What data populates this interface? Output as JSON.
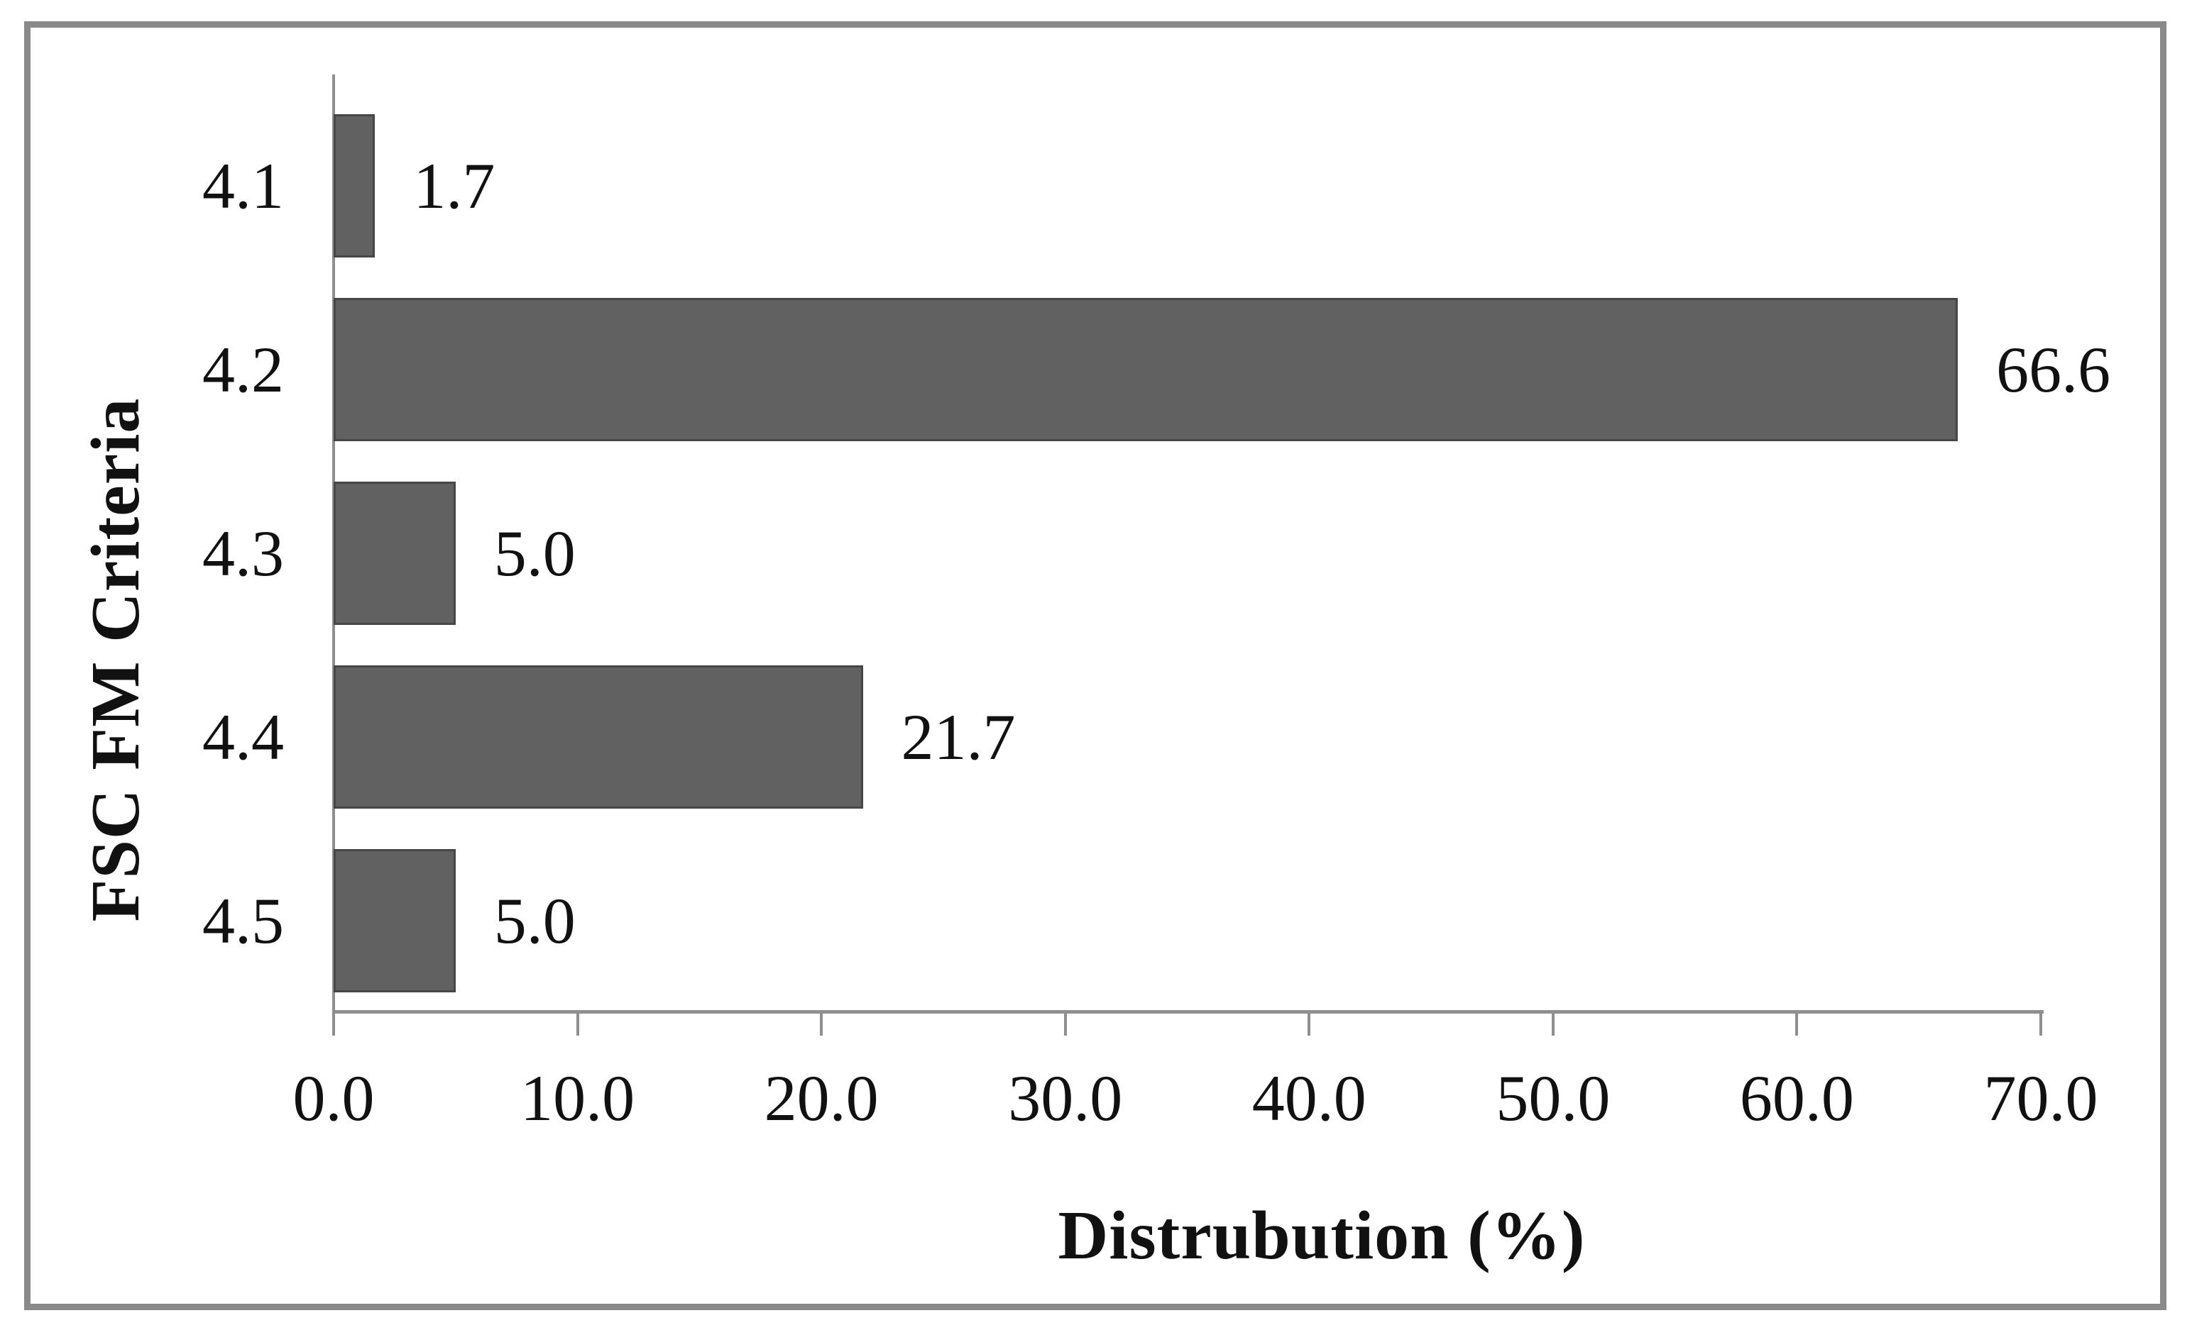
{
  "chart_data": {
    "type": "bar",
    "orientation": "horizontal",
    "title": "",
    "xlabel": "Distrubution (%)",
    "ylabel": "FSC FM Criteria",
    "categories": [
      "4.1",
      "4.2",
      "4.3",
      "4.4",
      "4.5"
    ],
    "values": [
      1.7,
      66.6,
      5.0,
      21.7,
      5.0
    ],
    "value_labels": [
      "1.7",
      "66.6",
      "5.0",
      "21.7",
      "5.0"
    ],
    "xlim": [
      0.0,
      70.0
    ],
    "xtick_values": [
      0,
      10,
      20,
      30,
      40,
      50,
      60,
      70
    ],
    "xtick_labels": [
      "0.0",
      "10.0",
      "20.0",
      "30.0",
      "40.0",
      "50.0",
      "60.0",
      "70.0"
    ],
    "grid": false,
    "legend": "none",
    "bar_color": "#616161",
    "bar_border_color": "#464646",
    "axis_color": "#8f8f8f",
    "frame_color": "#8a8a8a",
    "text_color": "#111111"
  }
}
